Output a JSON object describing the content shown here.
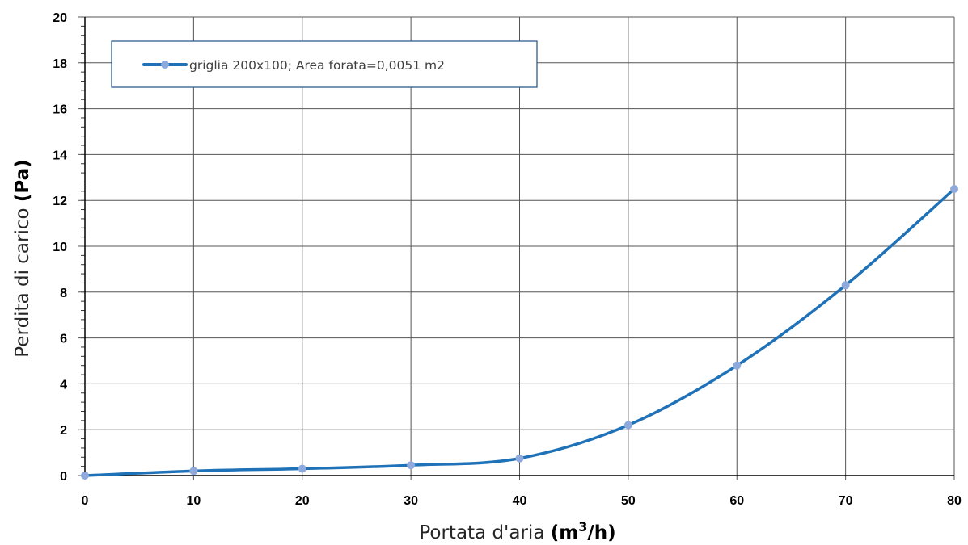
{
  "chart_data": {
    "type": "line",
    "title": "",
    "xlabel": {
      "text": "Portata d'aria ",
      "unit_prefix": "(m",
      "unit_sup": "3",
      "unit_suffix": "/h)"
    },
    "ylabel": {
      "text": "Perdita di carico ",
      "unit": "(Pa)"
    },
    "xlim": [
      0,
      80
    ],
    "ylim": [
      0,
      20
    ],
    "x_ticks": [
      "0",
      "10",
      "20",
      "30",
      "40",
      "50",
      "60",
      "70",
      "80"
    ],
    "y_ticks": [
      "0",
      "2",
      "4",
      "6",
      "8",
      "10",
      "12",
      "14",
      "16",
      "18",
      "20"
    ],
    "grid": true,
    "minor_y_step": 0.4,
    "legend_position": "top-left",
    "series": [
      {
        "name": "griglia 200x100;  Area forata=0,0051 m2",
        "x": [
          0,
          10,
          20,
          30,
          40,
          50,
          60,
          70,
          80
        ],
        "y": [
          0,
          0.2,
          0.3,
          0.45,
          0.75,
          2.2,
          4.8,
          8.3,
          12.5
        ],
        "line_color": "#1f72b8",
        "marker_color": "#8ea9db"
      }
    ]
  }
}
